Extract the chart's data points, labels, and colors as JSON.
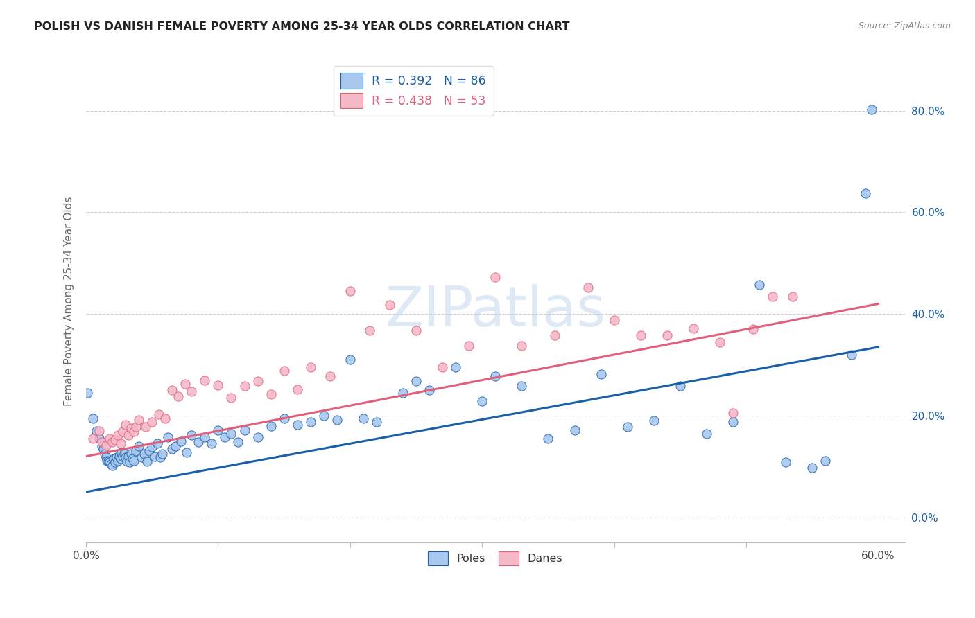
{
  "title": "POLISH VS DANISH FEMALE POVERTY AMONG 25-34 YEAR OLDS CORRELATION CHART",
  "source": "Source: ZipAtlas.com",
  "ylabel": "Female Poverty Among 25-34 Year Olds",
  "xlim": [
    0.0,
    0.62
  ],
  "ylim": [
    -0.05,
    0.9
  ],
  "xticks": [
    0.0,
    0.1,
    0.2,
    0.3,
    0.4,
    0.5,
    0.6
  ],
  "yticks": [
    0.0,
    0.2,
    0.4,
    0.6,
    0.8
  ],
  "ytick_labels": [
    "0.0%",
    "20.0%",
    "40.0%",
    "60.0%",
    "80.0%"
  ],
  "xtick_labels": [
    "0.0%",
    "",
    "",
    "",
    "",
    "",
    "60.0%"
  ],
  "poles_color": "#a8c8f0",
  "danes_color": "#f5b8c8",
  "poles_line_color": "#1a5fa8",
  "danes_line_color": "#e0607a",
  "R_poles": 0.392,
  "N_poles": 86,
  "R_danes": 0.438,
  "N_danes": 53,
  "legend_label_poles": "Poles",
  "legend_label_danes": "Danes",
  "watermark": "ZIPatlas",
  "background_color": "#ffffff",
  "grid_color": "#cccccc",
  "poles_scatter_x": [
    0.001,
    0.005,
    0.008,
    0.01,
    0.012,
    0.013,
    0.014,
    0.015,
    0.016,
    0.017,
    0.018,
    0.019,
    0.02,
    0.021,
    0.022,
    0.023,
    0.024,
    0.025,
    0.026,
    0.027,
    0.028,
    0.029,
    0.03,
    0.031,
    0.032,
    0.033,
    0.034,
    0.035,
    0.036,
    0.038,
    0.04,
    0.042,
    0.044,
    0.046,
    0.048,
    0.05,
    0.052,
    0.054,
    0.056,
    0.058,
    0.062,
    0.065,
    0.068,
    0.072,
    0.076,
    0.08,
    0.085,
    0.09,
    0.095,
    0.1,
    0.105,
    0.11,
    0.115,
    0.12,
    0.13,
    0.14,
    0.15,
    0.16,
    0.17,
    0.18,
    0.19,
    0.2,
    0.21,
    0.22,
    0.24,
    0.25,
    0.26,
    0.28,
    0.3,
    0.31,
    0.33,
    0.35,
    0.37,
    0.39,
    0.41,
    0.43,
    0.45,
    0.47,
    0.49,
    0.51,
    0.53,
    0.55,
    0.56,
    0.58,
    0.59,
    0.595
  ],
  "poles_scatter_y": [
    0.245,
    0.195,
    0.17,
    0.155,
    0.14,
    0.135,
    0.125,
    0.118,
    0.112,
    0.11,
    0.108,
    0.105,
    0.102,
    0.115,
    0.108,
    0.118,
    0.112,
    0.12,
    0.115,
    0.128,
    0.12,
    0.125,
    0.118,
    0.11,
    0.12,
    0.108,
    0.125,
    0.115,
    0.112,
    0.13,
    0.14,
    0.118,
    0.125,
    0.11,
    0.13,
    0.138,
    0.12,
    0.145,
    0.118,
    0.125,
    0.158,
    0.135,
    0.14,
    0.15,
    0.128,
    0.162,
    0.148,
    0.158,
    0.145,
    0.172,
    0.158,
    0.165,
    0.148,
    0.172,
    0.158,
    0.18,
    0.195,
    0.182,
    0.188,
    0.2,
    0.192,
    0.31,
    0.195,
    0.188,
    0.245,
    0.268,
    0.25,
    0.295,
    0.228,
    0.278,
    0.258,
    0.155,
    0.172,
    0.282,
    0.178,
    0.19,
    0.258,
    0.165,
    0.188,
    0.458,
    0.108,
    0.098,
    0.112,
    0.32,
    0.638,
    0.802
  ],
  "danes_scatter_x": [
    0.005,
    0.01,
    0.012,
    0.015,
    0.018,
    0.02,
    0.022,
    0.024,
    0.026,
    0.028,
    0.03,
    0.032,
    0.034,
    0.036,
    0.038,
    0.04,
    0.045,
    0.05,
    0.055,
    0.06,
    0.065,
    0.07,
    0.075,
    0.08,
    0.09,
    0.1,
    0.11,
    0.12,
    0.13,
    0.14,
    0.15,
    0.16,
    0.17,
    0.185,
    0.2,
    0.215,
    0.23,
    0.25,
    0.27,
    0.29,
    0.31,
    0.33,
    0.355,
    0.38,
    0.4,
    0.42,
    0.44,
    0.46,
    0.48,
    0.49,
    0.505,
    0.52,
    0.535
  ],
  "danes_scatter_y": [
    0.155,
    0.17,
    0.148,
    0.142,
    0.155,
    0.148,
    0.152,
    0.162,
    0.145,
    0.168,
    0.182,
    0.162,
    0.175,
    0.168,
    0.178,
    0.192,
    0.178,
    0.188,
    0.202,
    0.195,
    0.25,
    0.238,
    0.262,
    0.248,
    0.27,
    0.26,
    0.235,
    0.258,
    0.268,
    0.242,
    0.288,
    0.252,
    0.295,
    0.278,
    0.445,
    0.368,
    0.418,
    0.368,
    0.295,
    0.338,
    0.472,
    0.338,
    0.358,
    0.452,
    0.388,
    0.358,
    0.358,
    0.372,
    0.345,
    0.205,
    0.37,
    0.435,
    0.435
  ]
}
